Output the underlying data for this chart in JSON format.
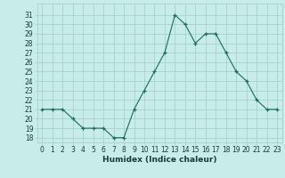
{
  "x": [
    0,
    1,
    2,
    3,
    4,
    5,
    6,
    7,
    8,
    9,
    10,
    11,
    12,
    13,
    14,
    15,
    16,
    17,
    18,
    19,
    20,
    21,
    22,
    23
  ],
  "y": [
    21,
    21,
    21,
    20,
    19,
    19,
    19,
    18,
    18,
    21,
    23,
    25,
    27,
    31,
    30,
    28,
    29,
    29,
    27,
    25,
    24,
    22,
    21,
    21
  ],
  "line_color": "#1a6b5a",
  "marker_color": "#1a6b5a",
  "bg_color": "#c8ece8",
  "grid_color": "#9ecfca",
  "xlabel": "Humidex (Indice chaleur)",
  "ylabel_ticks": [
    18,
    19,
    20,
    21,
    22,
    23,
    24,
    25,
    26,
    27,
    28,
    29,
    30,
    31
  ],
  "ylim": [
    17.5,
    32.2
  ],
  "xlim": [
    -0.5,
    23.5
  ],
  "label_fontsize": 6.5,
  "tick_fontsize": 5.5
}
